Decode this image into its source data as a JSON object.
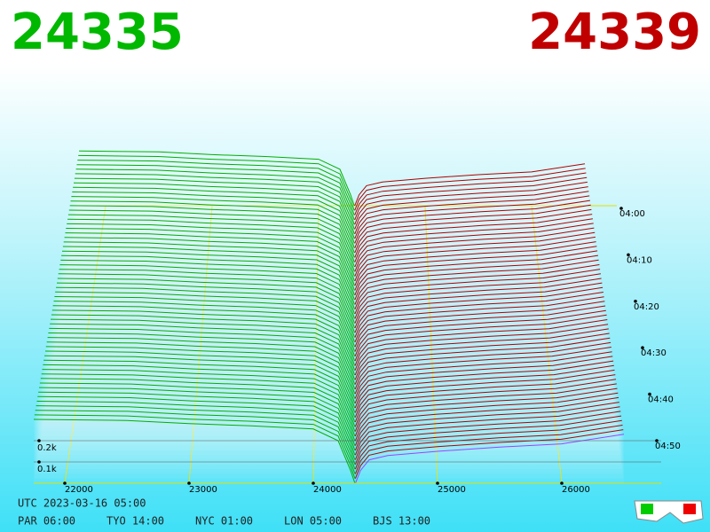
{
  "chart_data": {
    "type": "depth3d",
    "bid_price": 24335,
    "ask_price": 24339,
    "price_ticks": [
      22000,
      23000,
      24000,
      25000,
      26000
    ],
    "depth_ticks": [
      {
        "value": 100,
        "label": "0.1k"
      },
      {
        "value": 200,
        "label": "0.2k"
      }
    ],
    "time_ticks": [
      "04:00",
      "04:10",
      "04:20",
      "04:30",
      "04:40",
      "04:50"
    ],
    "utc": "UTC 2023-03-16 05:00",
    "clocks": [
      "PAR 06:00",
      "TYO 14:00",
      "NYC 01:00",
      "LON 05:00",
      "BJS 13:00"
    ],
    "bids": {
      "color": "#00b000",
      "prices": [
        21750,
        22500,
        23000,
        23500,
        24000,
        24200,
        24300,
        24335
      ],
      "depth": [
        300,
        295,
        280,
        270,
        255,
        200,
        60,
        0
      ]
    },
    "asks": {
      "color": "#b00000",
      "prices": [
        24339,
        24380,
        24450,
        24600,
        25000,
        25500,
        26000,
        26500
      ],
      "depth": [
        0,
        60,
        110,
        130,
        150,
        170,
        185,
        230
      ]
    }
  }
}
